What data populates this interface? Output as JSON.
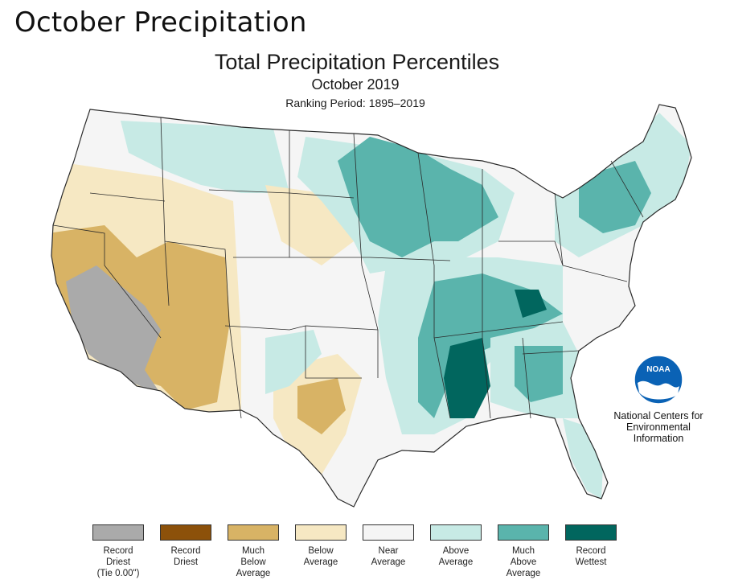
{
  "slide": {
    "title": "October Precipitation"
  },
  "map": {
    "title": "Total Precipitation Percentiles",
    "subtitle": "October 2019",
    "period": "Ranking Period: 1895–2019",
    "region": "Contiguous United States",
    "credit": "National Centers for\nEnvironmental\nInformation",
    "logo_text": "NOAA"
  },
  "legend": [
    {
      "label": "Record\nDriest\n(Tie 0.00\")",
      "color": "#aaaaaa"
    },
    {
      "label": "Record\nDriest",
      "color": "#8c510a"
    },
    {
      "label": "Much\nBelow\nAverage",
      "color": "#d8b365"
    },
    {
      "label": "Below\nAverage",
      "color": "#f6e8c3"
    },
    {
      "label": "Near\nAverage",
      "color": "#f5f5f5"
    },
    {
      "label": "Above\nAverage",
      "color": "#c7eae5"
    },
    {
      "label": "Much\nAbove\nAverage",
      "color": "#5ab4ac"
    },
    {
      "label": "Record\nWettest",
      "color": "#01665e"
    }
  ]
}
